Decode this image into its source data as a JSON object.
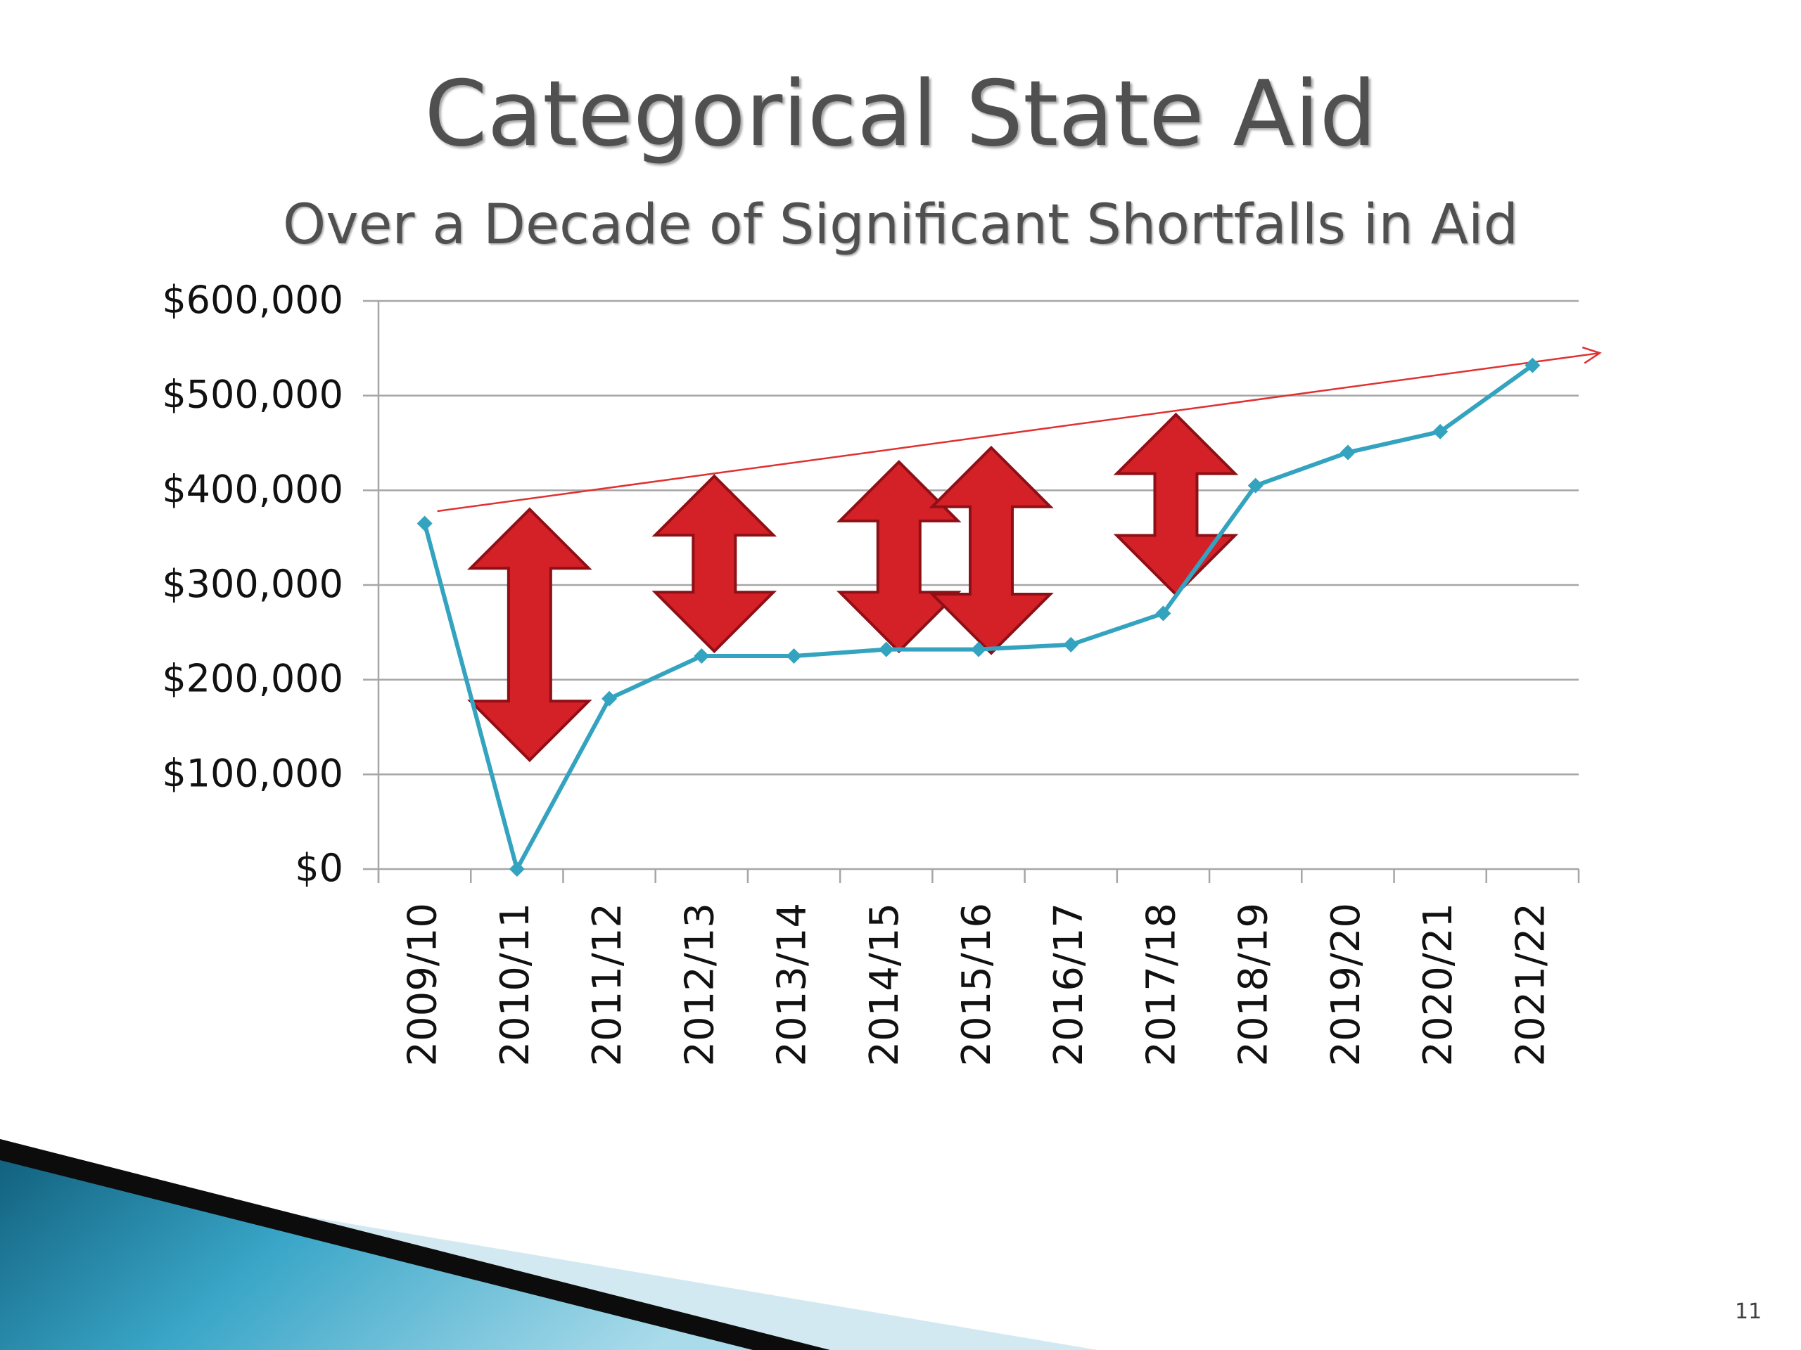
{
  "slide": {
    "title": "Categorical State Aid",
    "subtitle": "Over a Decade of Significant Shortfalls in Aid",
    "page_number": "11"
  },
  "colors": {
    "series": "#34a3bf",
    "trend_line": "#e03030",
    "arrows": "#d42027",
    "gridlines": "#a6a6a6",
    "title_text": "#505050"
  },
  "chart_data": {
    "type": "line",
    "title": "Categorical State Aid",
    "subtitle": "Over a Decade of Significant Shortfalls in Aid",
    "xlabel": "",
    "ylabel": "",
    "categories": [
      "2009/10",
      "2010/11",
      "2011/12",
      "2012/13",
      "2013/14",
      "2014/15",
      "2015/16",
      "2016/17",
      "2017/18",
      "2018/19",
      "2019/20",
      "2020/21",
      "2021/22"
    ],
    "series": [
      {
        "name": "",
        "values": [
          365000,
          0,
          180000,
          225000,
          225000,
          232000,
          232000,
          237000,
          270000,
          405000,
          440000,
          462000,
          532000
        ]
      }
    ],
    "trend_line": {
      "from": [
        "2009/10",
        378000
      ],
      "to": [
        "2021/22",
        545000
      ],
      "arrowhead": true
    },
    "shortfall_arrows": [
      {
        "category": "2010/11",
        "top": 380000,
        "bottom": 115000
      },
      {
        "category": "2012/13",
        "top": 415000,
        "bottom": 230000
      },
      {
        "category": "2014/15",
        "top": 430000,
        "bottom": 230000
      },
      {
        "category": "2015/16",
        "top": 445000,
        "bottom": 228000
      },
      {
        "category": "2017/18",
        "top": 480000,
        "bottom": 290000
      }
    ],
    "ylim": [
      0,
      600000
    ],
    "yticks": [
      0,
      100000,
      200000,
      300000,
      400000,
      500000,
      600000
    ],
    "ytick_labels": [
      "$0",
      "$100,000",
      "$200,000",
      "$300,000",
      "$400,000",
      "$500,000",
      "$600,000"
    ],
    "grid": true,
    "legend": "none"
  }
}
